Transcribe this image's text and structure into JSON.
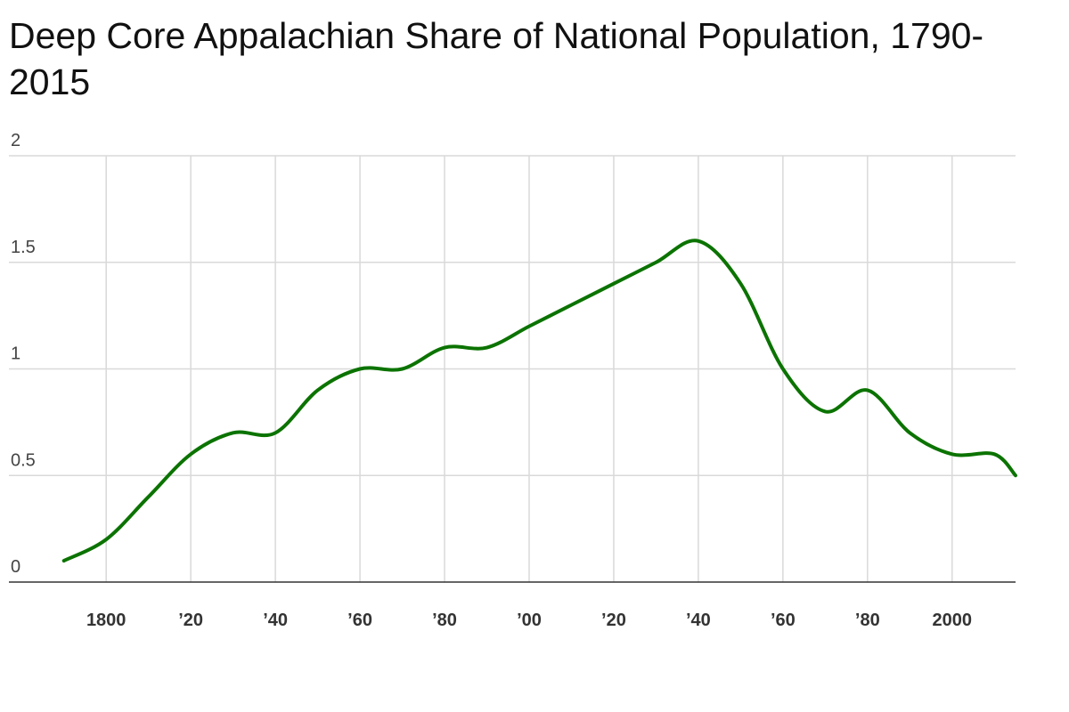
{
  "chart_data": {
    "type": "line",
    "title": "Deep Core Appalachian Share of National Population, 1790-2015",
    "xlabel": "",
    "ylabel": "",
    "xlim": [
      1777,
      2015
    ],
    "ylim": [
      0,
      2
    ],
    "y_ticks": [
      {
        "value": 0,
        "label": "0"
      },
      {
        "value": 0.5,
        "label": "0.5"
      },
      {
        "value": 1,
        "label": "1"
      },
      {
        "value": 1.5,
        "label": "1.5"
      },
      {
        "value": 2,
        "label": "2"
      }
    ],
    "x_ticks": [
      {
        "value": 1800,
        "label": "1800"
      },
      {
        "value": 1820,
        "label": "’20"
      },
      {
        "value": 1840,
        "label": "’40"
      },
      {
        "value": 1860,
        "label": "’60"
      },
      {
        "value": 1880,
        "label": "’80"
      },
      {
        "value": 1900,
        "label": "’00"
      },
      {
        "value": 1920,
        "label": "’20"
      },
      {
        "value": 1940,
        "label": "’40"
      },
      {
        "value": 1960,
        "label": "’60"
      },
      {
        "value": 1980,
        "label": "’80"
      },
      {
        "value": 2000,
        "label": "2000"
      }
    ],
    "grid": true,
    "series": [
      {
        "color": "#0b7300",
        "x": [
          1790,
          1800,
          1810,
          1820,
          1830,
          1840,
          1850,
          1860,
          1870,
          1880,
          1890,
          1900,
          1910,
          1920,
          1930,
          1940,
          1950,
          1960,
          1970,
          1980,
          1990,
          2000,
          2010,
          2015
        ],
        "y": [
          0.1,
          0.2,
          0.4,
          0.6,
          0.7,
          0.7,
          0.9,
          1.0,
          1.0,
          1.1,
          1.1,
          1.2,
          1.3,
          1.4,
          1.5,
          1.6,
          1.4,
          1.0,
          0.8,
          0.9,
          0.7,
          0.6,
          0.6,
          0.5
        ]
      }
    ]
  },
  "colors": {
    "grid": "#d9d9d9",
    "axis": "#333333"
  }
}
